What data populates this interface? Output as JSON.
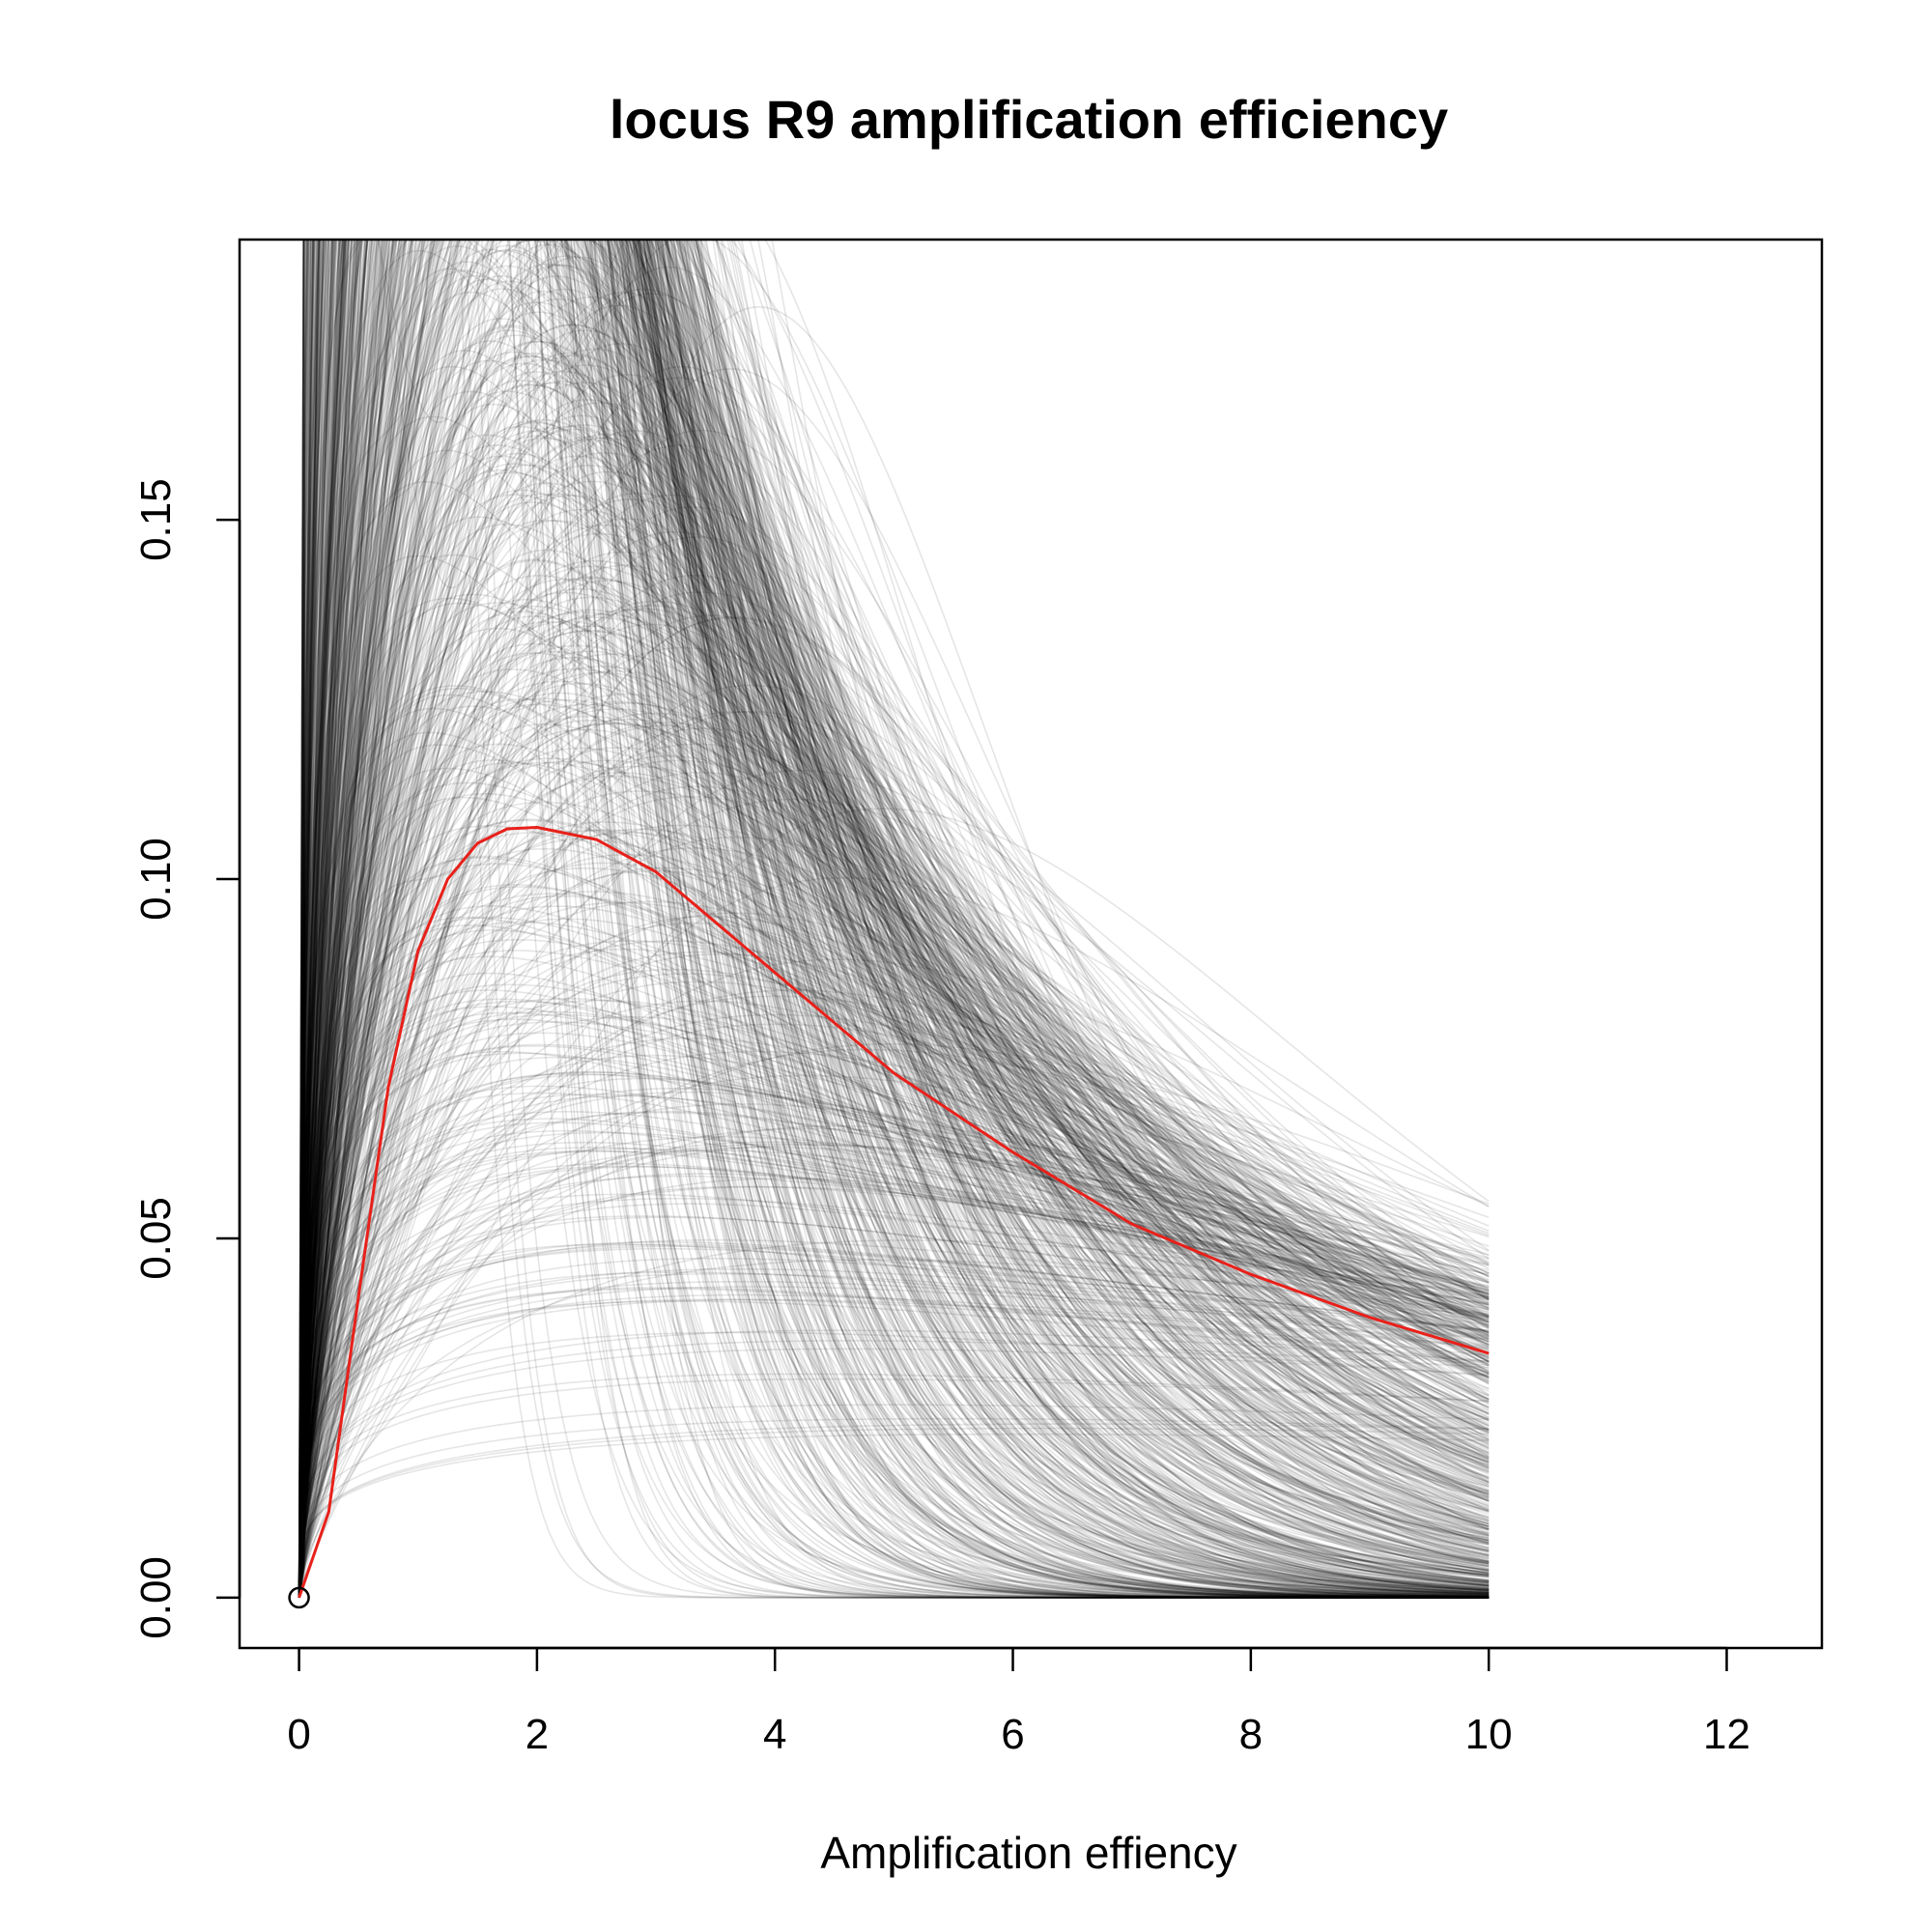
{
  "chart_data": {
    "type": "line",
    "title": "locus R9 amplification efficiency",
    "xlabel": "Amplification effiency",
    "ylabel": "",
    "xlim": [
      -0.5,
      12.8
    ],
    "ylim": [
      -0.007,
      0.189
    ],
    "x_ticks": [
      0,
      2,
      4,
      6,
      8,
      10,
      12
    ],
    "y_ticks": [
      0.0,
      0.05,
      0.1,
      0.15
    ],
    "x_tick_labels": [
      "0",
      "2",
      "4",
      "6",
      "8",
      "10",
      "12"
    ],
    "y_tick_labels": [
      "0.00",
      "0.05",
      "0.10",
      "0.15"
    ],
    "grid": false,
    "series": [
      {
        "role": "posterior-draws",
        "color": "#000000",
        "opacity": 0.1,
        "description_of_shape": "many thin translucent curves rising from 0 at x=0, peaking between x≈0.3 and x≈5 at y≈0.08–0.19, decaying to y≈0.013–0.071 at x=10",
        "x_range": [
          0,
          10
        ]
      },
      {
        "role": "mean-curve",
        "color": "#e8201a",
        "x": [
          0,
          0.25,
          0.5,
          0.75,
          1.0,
          1.25,
          1.5,
          1.75,
          2.0,
          2.5,
          3.0,
          3.5,
          4.0,
          5.0,
          6.0,
          7.0,
          8.0,
          9.0,
          10.0
        ],
        "values": [
          0.0,
          0.012,
          0.042,
          0.071,
          0.09,
          0.1,
          0.105,
          0.107,
          0.1072,
          0.1055,
          0.101,
          0.094,
          0.087,
          0.073,
          0.062,
          0.052,
          0.045,
          0.039,
          0.034
        ]
      }
    ],
    "point": {
      "x": 0,
      "y": 0,
      "shape": "open-circle"
    }
  }
}
